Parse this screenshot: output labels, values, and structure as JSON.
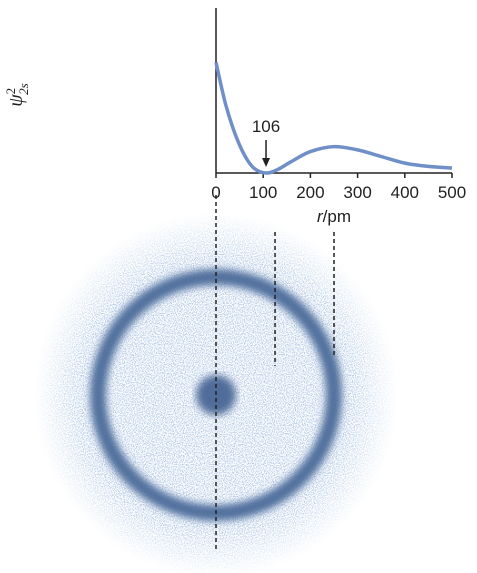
{
  "chart_data": {
    "type": "line",
    "y_label": {
      "text": "ψ",
      "sup": "2",
      "sub": "2s"
    },
    "x_label": {
      "var": "r",
      "unit": "/pm"
    },
    "x": [
      0,
      20,
      40,
      60,
      80,
      106,
      130,
      160,
      200,
      250,
      300,
      350,
      400,
      450,
      500
    ],
    "values": [
      0.67,
      0.42,
      0.24,
      0.11,
      0.03,
      0,
      0.02,
      0.07,
      0.13,
      0.16,
      0.14,
      0.1,
      0.06,
      0.04,
      0.03
    ],
    "color": "#6f8fc8",
    "xlim": [
      0,
      500
    ],
    "xticks": [
      0,
      100,
      200,
      300,
      400,
      500
    ],
    "ylim": [
      0,
      1
    ],
    "annotation": {
      "x": 106,
      "label": "106"
    }
  }
}
